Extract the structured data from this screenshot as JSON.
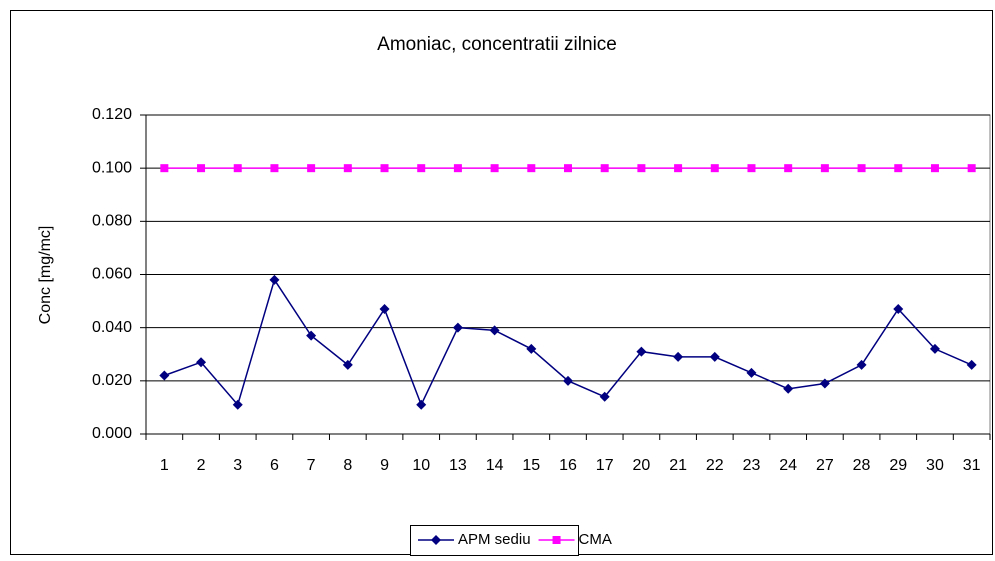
{
  "chart_data": {
    "type": "line",
    "title": "Amoniac, concentratii zilnice",
    "y_label": "Conc [mg/mc]",
    "categories": [
      "1",
      "2",
      "3",
      "6",
      "7",
      "8",
      "9",
      "10",
      "13",
      "14",
      "15",
      "16",
      "17",
      "20",
      "21",
      "22",
      "23",
      "24",
      "27",
      "28",
      "29",
      "30",
      "31"
    ],
    "series": [
      {
        "name": "APM sediu",
        "color": "#000080",
        "marker": "diamond",
        "values": [
          0.022,
          0.027,
          0.011,
          0.058,
          0.037,
          0.026,
          0.047,
          0.011,
          0.04,
          0.039,
          0.032,
          0.02,
          0.014,
          0.031,
          0.029,
          0.029,
          0.023,
          0.017,
          0.019,
          0.026,
          0.047,
          0.032,
          0.026
        ]
      },
      {
        "name": "CMA",
        "color": "#ff00ff",
        "marker": "square",
        "values": [
          0.1,
          0.1,
          0.1,
          0.1,
          0.1,
          0.1,
          0.1,
          0.1,
          0.1,
          0.1,
          0.1,
          0.1,
          0.1,
          0.1,
          0.1,
          0.1,
          0.1,
          0.1,
          0.1,
          0.1,
          0.1,
          0.1,
          0.1
        ]
      }
    ],
    "ylim": [
      0,
      0.12
    ],
    "yticks": [
      {
        "value": 0,
        "label": "0.000"
      },
      {
        "value": 0.02,
        "label": "0.020"
      },
      {
        "value": 0.04,
        "label": "0.040"
      },
      {
        "value": 0.06,
        "label": "0.060"
      },
      {
        "value": 0.08,
        "label": "0.080"
      },
      {
        "value": 0.1,
        "label": "0.100"
      },
      {
        "value": 0.12,
        "label": "0.120"
      }
    ],
    "grid": true,
    "legend": "bottom"
  }
}
